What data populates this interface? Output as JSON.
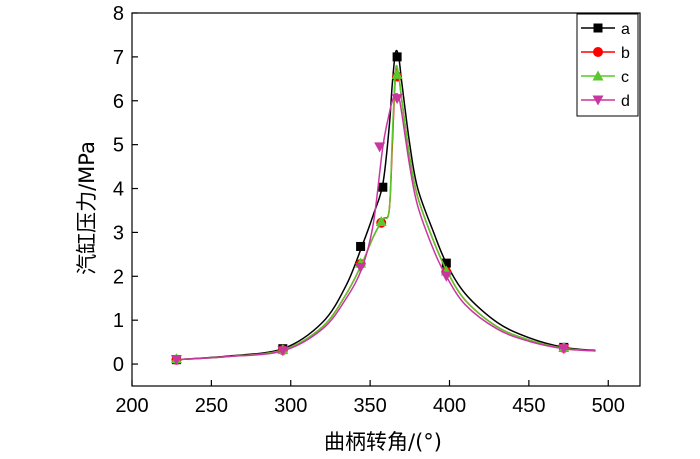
{
  "chart_data": {
    "type": "line",
    "xlabel": "曲柄转角/(°)",
    "ylabel": "汽缸压力/MPa",
    "xlim": [
      200,
      520
    ],
    "ylim": [
      -0.5,
      8
    ],
    "xticks": [
      200,
      250,
      300,
      350,
      400,
      450,
      500
    ],
    "yticks": [
      0,
      1,
      2,
      3,
      4,
      5,
      6,
      7,
      8
    ],
    "legend_position": "top-right",
    "series": [
      {
        "name": "a",
        "color": "#000000",
        "marker": "square",
        "x": [
          228,
          260,
          295,
          320,
          335,
          345,
          352,
          358,
          362,
          364,
          366,
          368,
          370,
          375,
          380,
          390,
          398,
          410,
          430,
          450,
          472,
          492
        ],
        "y": [
          0.1,
          0.18,
          0.35,
          0.95,
          1.8,
          2.7,
          3.4,
          4.1,
          5.4,
          6.4,
          7.1,
          7.0,
          6.4,
          5.0,
          4.0,
          3.0,
          2.3,
          1.6,
          0.95,
          0.6,
          0.38,
          0.31
        ],
        "marker_x": [
          228,
          295,
          344,
          358,
          367,
          398,
          472
        ],
        "marker_y": [
          0.1,
          0.35,
          2.68,
          4.03,
          7.0,
          2.3,
          0.38
        ]
      },
      {
        "name": "b",
        "color": "#ff0000",
        "marker": "circle",
        "x": [
          228,
          260,
          295,
          320,
          335,
          345,
          352,
          358,
          362,
          364,
          366,
          368,
          370,
          375,
          380,
          390,
          398,
          410,
          430,
          450,
          472,
          492
        ],
        "y": [
          0.1,
          0.17,
          0.32,
          0.85,
          1.6,
          2.3,
          2.9,
          3.3,
          3.5,
          5.0,
          6.6,
          6.55,
          6.0,
          4.7,
          3.8,
          2.8,
          2.15,
          1.45,
          0.85,
          0.55,
          0.36,
          0.3
        ],
        "marker_x": [
          228,
          295,
          344,
          357,
          367,
          398,
          472
        ],
        "marker_y": [
          0.1,
          0.32,
          2.28,
          3.22,
          6.55,
          2.1,
          0.37
        ]
      },
      {
        "name": "c",
        "color": "#5ac72c",
        "marker": "triangle-up",
        "x": [
          228,
          260,
          295,
          320,
          335,
          345,
          352,
          358,
          362,
          364,
          366,
          368,
          370,
          375,
          380,
          390,
          398,
          410,
          430,
          450,
          472,
          492
        ],
        "y": [
          0.1,
          0.17,
          0.32,
          0.85,
          1.6,
          2.3,
          2.9,
          3.3,
          3.5,
          5.2,
          6.7,
          6.6,
          6.0,
          4.7,
          3.8,
          2.8,
          2.15,
          1.45,
          0.85,
          0.55,
          0.36,
          0.3
        ],
        "marker_x": [
          228,
          295,
          344,
          357,
          367,
          398,
          472
        ],
        "marker_y": [
          0.12,
          0.33,
          2.3,
          3.25,
          6.6,
          2.12,
          0.38
        ]
      },
      {
        "name": "d",
        "color": "#c837a0",
        "marker": "triangle-down",
        "x": [
          228,
          260,
          295,
          320,
          335,
          345,
          352,
          358,
          362,
          364,
          366,
          368,
          370,
          375,
          380,
          390,
          398,
          410,
          430,
          450,
          472,
          492
        ],
        "y": [
          0.1,
          0.17,
          0.3,
          0.8,
          1.5,
          2.2,
          3.2,
          4.95,
          5.7,
          6.0,
          6.15,
          6.1,
          5.7,
          4.5,
          3.6,
          2.6,
          2.0,
          1.35,
          0.8,
          0.52,
          0.35,
          0.3
        ],
        "marker_x": [
          228,
          295,
          344,
          356,
          367,
          398,
          472
        ],
        "marker_y": [
          0.1,
          0.3,
          2.2,
          4.95,
          6.05,
          2.0,
          0.35
        ]
      }
    ]
  }
}
